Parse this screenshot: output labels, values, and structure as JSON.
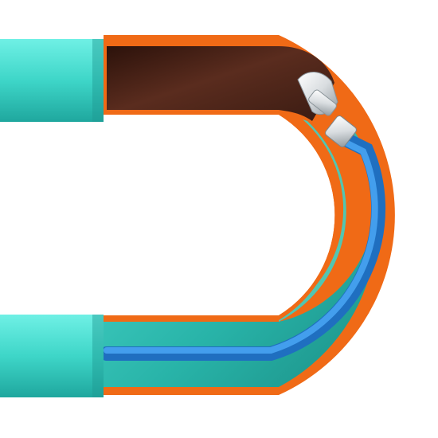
{
  "figure": {
    "subject": "pipe-cutaway",
    "components": [
      {
        "name": "outer-pipe-upper",
        "color": "#3ed6c8"
      },
      {
        "name": "outer-pipe-lower",
        "color": "#3ed6c8"
      },
      {
        "name": "pipe-wall",
        "color": "#f06a16"
      },
      {
        "name": "inner-liner",
        "color": "#2fbfb3"
      },
      {
        "name": "brown-interior",
        "color": "#4a2418"
      },
      {
        "name": "blue-hose",
        "color": "#2f8fe3"
      },
      {
        "name": "nozzle",
        "color": "#d9dde0"
      }
    ]
  }
}
